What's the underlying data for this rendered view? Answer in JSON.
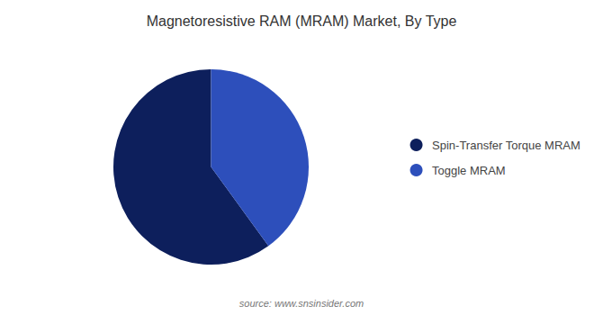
{
  "chart_data": {
    "type": "pie",
    "title": "Magnetoresistive RAM (MRAM) Market, By Type",
    "categories": [
      "Spin-Transfer Torque MRAM",
      "Toggle MRAM"
    ],
    "values": [
      60,
      40
    ],
    "colors": [
      "#0d1f5c",
      "#2d4fbb"
    ],
    "legend": "right",
    "annotations": [
      "source: www.snsinsider.com"
    ]
  }
}
